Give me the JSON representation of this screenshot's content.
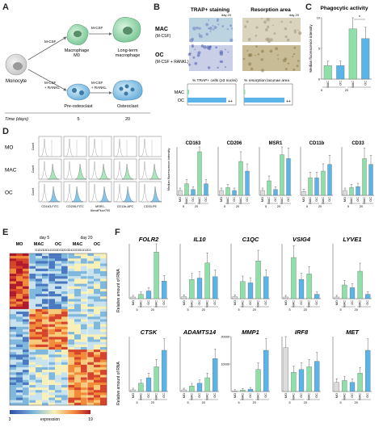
{
  "panels": {
    "A": {
      "label": "A",
      "monocyte": "Monocyte",
      "mcsf_top": "M-CSF",
      "mcsf_mid": "M-CSF",
      "mcsf_bot": "M-CSF",
      "rankl_bot": "+ RANKL",
      "mcsf_bot2": "M-CSF",
      "rankl_bot2": "+ RANKL",
      "mac0": "Macrophage",
      "mac0b": "M0",
      "ltmac": "Long-term",
      "ltmacb": "macrophage",
      "preoc": "Pre-osteoclast",
      "oc": "Osteoclast",
      "time_label": "Time (days)",
      "t5": "5",
      "t20": "20"
    },
    "B": {
      "label": "B",
      "trap_title": "TRAP+ staining",
      "res_title": "Resorption area",
      "day_a": "day 20",
      "day_b": "day 20",
      "mac": "MAC",
      "mac_sub": "(M-CSF)",
      "oc": "OC",
      "oc_sub": "(M-CSF + RANKL)",
      "bar_title1": "% TRAP+ cells (≥3 nuclei)",
      "bar_title2": "% resorption lacunae area",
      "row_mac": "MAC",
      "row_oc": "OC",
      "sig1": "++",
      "sig2": "++"
    },
    "C": {
      "label": "C",
      "title": "Phagocytic activity",
      "ylabel": "Median fluorescence intensity",
      "cats": [
        "MAC",
        "OC",
        "MAC",
        "OC"
      ],
      "days": [
        "5",
        "20"
      ],
      "sig": "*"
    },
    "D": {
      "label": "D",
      "rows": [
        "MO",
        "MAC",
        "OC"
      ],
      "ylab": "Count",
      "xlabs": [
        "CD163-FITC",
        "CD206-FITC",
        "MSR1-AlexaFluor700",
        "CD11b-APC",
        "CD33-PE"
      ],
      "bar_titles": [
        "CD163",
        "CD206",
        "MSR1",
        "CD11b",
        "CD33"
      ],
      "ylabel": "Median fluorescence intensity",
      "cats": [
        "MO",
        "MAC",
        "OC",
        "MAC",
        "OC"
      ],
      "days": [
        "5",
        "20"
      ]
    },
    "E": {
      "label": "E",
      "day5": "day 5",
      "day20": "day 20",
      "groups": [
        "MO",
        "MAC",
        "OC",
        "MAC",
        "OC"
      ],
      "donors": "D1D2D3D1D2D3D1D2D3D1D2D3D1D2D3",
      "legend_min": "3",
      "legend_label": "expression",
      "legend_max": "19"
    },
    "F": {
      "label": "F",
      "ylabel": "Relative amount of RNA",
      "genes_row1": [
        "FOLR2",
        "IL10",
        "C1QC",
        "VSIG4",
        "LYVE1"
      ],
      "genes_row2": [
        "CTSK",
        "ADAMTS14",
        "MMP1",
        "IRF8",
        "MET"
      ],
      "cats": [
        "MO",
        "MAC",
        "OC",
        "MAC",
        "OC"
      ],
      "days": [
        "5",
        "20"
      ],
      "mmp1_max": "20000",
      "mmp1_tick": "10000"
    }
  },
  "colors": {
    "mo": "#dcdcdc",
    "mac": "#8ee0a8",
    "oc": "#5bb4e8",
    "line": "#333333"
  },
  "chart_data": [
    {
      "type": "bar",
      "title": "Phagocytic activity",
      "ylabel": "Median fluorescence intensity",
      "categories": [
        "MAC d5",
        "OC d5",
        "MAC d20",
        "OC d20"
      ],
      "values": [
        2.2,
        2.2,
        8.2,
        6.6
      ],
      "ylim": [
        0,
        10
      ]
    },
    {
      "type": "bar",
      "title": "CD163",
      "categories": [
        "MO",
        "MAC d5",
        "OC d5",
        "MAC d20",
        "OC d20"
      ],
      "values": [
        0.5,
        1.2,
        0.6,
        4.5,
        1.2
      ],
      "ylim": [
        0,
        5
      ]
    },
    {
      "type": "bar",
      "title": "CD206",
      "categories": [
        "MO",
        "MAC d5",
        "OC d5",
        "MAC d20",
        "OC d20"
      ],
      "values": [
        0.5,
        0.8,
        0.5,
        3.5,
        2.5
      ],
      "ylim": [
        0,
        5
      ]
    },
    {
      "type": "bar",
      "title": "MSR1",
      "categories": [
        "MO",
        "MAC d5",
        "OC d5",
        "MAC d20",
        "OC d20"
      ],
      "values": [
        0.5,
        1.5,
        0.6,
        4.2,
        3.8
      ],
      "ylim": [
        0,
        5
      ]
    },
    {
      "type": "bar",
      "title": "CD11b",
      "categories": [
        "MO",
        "MAC d5",
        "OC d5",
        "MAC d20",
        "OC d20"
      ],
      "values": [
        0.4,
        1.8,
        1.8,
        2.5,
        3.2
      ],
      "ylim": [
        0,
        5
      ]
    },
    {
      "type": "bar",
      "title": "CD33",
      "categories": [
        "MO",
        "MAC d5",
        "OC d5",
        "MAC d20",
        "OC d20"
      ],
      "values": [
        0.5,
        0.8,
        0.9,
        3.8,
        3.2
      ],
      "ylim": [
        0,
        5
      ]
    },
    {
      "type": "bar",
      "title": "FOLR2",
      "categories": [
        "MO",
        "MAC d5",
        "OC d5",
        "MAC d20",
        "OC d20"
      ],
      "values": [
        0.3,
        0.8,
        1.4,
        8.5,
        3.2
      ],
      "ylim": [
        0,
        10
      ]
    },
    {
      "type": "bar",
      "title": "IL10",
      "categories": [
        "MO",
        "MAC d5",
        "OC d5",
        "MAC d20",
        "OC d20"
      ],
      "values": [
        0.3,
        2.8,
        3.0,
        5.2,
        3.2
      ],
      "ylim": [
        0,
        8
      ]
    },
    {
      "type": "bar",
      "title": "C1QC",
      "categories": [
        "MO",
        "MAC d5",
        "OC d5",
        "MAC d20",
        "OC d20"
      ],
      "values": [
        0.3,
        2.5,
        2.3,
        5.5,
        3.2
      ],
      "ylim": [
        0,
        8
      ]
    },
    {
      "type": "bar",
      "title": "VSIG4",
      "categories": [
        "MO",
        "MAC d5",
        "OC d5",
        "MAC d20",
        "OC d20"
      ],
      "values": [
        0.3,
        7.5,
        3.5,
        4.5,
        0.8
      ],
      "ylim": [
        0,
        10
      ]
    },
    {
      "type": "bar",
      "title": "LYVE1",
      "categories": [
        "MO",
        "MAC d5",
        "OC d5",
        "MAC d20",
        "OC d20"
      ],
      "values": [
        0.3,
        2.5,
        2.0,
        5.0,
        0.8
      ],
      "ylim": [
        0,
        10
      ]
    },
    {
      "type": "bar",
      "title": "CTSK",
      "categories": [
        "MO",
        "MAC d5",
        "OC d5",
        "MAC d20",
        "OC d20"
      ],
      "values": [
        0.3,
        1.5,
        2.5,
        4.5,
        7.5
      ],
      "ylim": [
        0,
        10
      ]
    },
    {
      "type": "bar",
      "title": "ADAMTS14",
      "categories": [
        "MO",
        "MAC d5",
        "OC d5",
        "MAC d20",
        "OC d20"
      ],
      "values": [
        0.3,
        1.0,
        1.5,
        2.5,
        6.0
      ],
      "ylim": [
        0,
        10
      ]
    },
    {
      "type": "bar",
      "title": "MMP1",
      "categories": [
        "MO",
        "MAC d5",
        "OC d5",
        "MAC d20",
        "OC d20"
      ],
      "values": [
        200,
        500,
        800,
        8000,
        15000
      ],
      "ylim": [
        0,
        20000
      ]
    },
    {
      "type": "bar",
      "title": "IRF8",
      "categories": [
        "MO",
        "MAC d5",
        "OC d5",
        "MAC d20",
        "OC d20"
      ],
      "values": [
        8.0,
        3.5,
        4.0,
        4.5,
        5.5
      ],
      "ylim": [
        0,
        10
      ]
    },
    {
      "type": "bar",
      "title": "MET",
      "categories": [
        "MO",
        "MAC d5",
        "OC d5",
        "MAC d20",
        "OC d20"
      ],
      "values": [
        1.0,
        1.2,
        1.0,
        2.0,
        4.5
      ],
      "ylim": [
        0,
        6
      ]
    }
  ]
}
